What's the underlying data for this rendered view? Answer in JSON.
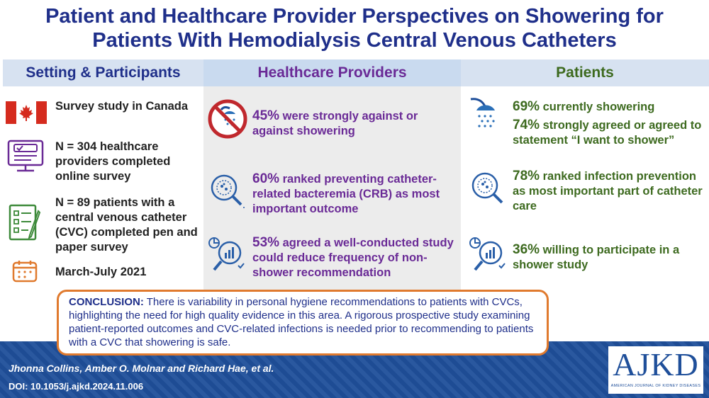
{
  "title": {
    "line1": "Patient and Healthcare Provider Perspectives on Showering for",
    "line2": "Patients With Hemodialysis Central Venous Catheters"
  },
  "columns": {
    "setting": "Setting & Participants",
    "providers": "Healthcare Providers",
    "patients": "Patients"
  },
  "setting": [
    {
      "icon": "canada-flag-icon",
      "text": "Survey study in Canada"
    },
    {
      "icon": "online-survey-icon",
      "text": "N = 304 healthcare providers completed online survey"
    },
    {
      "icon": "paper-survey-icon",
      "text": "N = 89 patients with a central venous catheter (CVC) completed pen and paper survey"
    },
    {
      "icon": "calendar-icon",
      "text": "March-July 2021"
    }
  ],
  "providers": [
    {
      "icon": "no-shower-icon",
      "pct": "45%",
      "text": " were strongly against or against showering"
    },
    {
      "icon": "bacteria-magnifier-icon",
      "pct": "60%",
      "text": " ranked preventing catheter-related bacteremia (CRB) as most important outcome"
    },
    {
      "icon": "data-analysis-icon",
      "pct": "53%",
      "text": " agreed a well-conducted study could reduce frequency of non-shower recommendation"
    }
  ],
  "patients": [
    {
      "icon": "shower-icon",
      "pct": "69%",
      "text": " currently showering"
    },
    {
      "icon": "",
      "pct": "74%",
      "text": " strongly agreed or agreed to statement “I want to shower”"
    },
    {
      "icon": "bacteria-magnifier-icon",
      "pct": "78%",
      "text": " ranked infection prevention as most important part of catheter care"
    },
    {
      "icon": "data-analysis-icon",
      "pct": "36%",
      "text": " willing to participate in a shower study"
    }
  ],
  "conclusion": {
    "label": "CONCLUSION:",
    "text": " There is variability in personal hygiene recommendations to patients with CVCs, highlighting the need for high quality evidence in this area. A rigorous prospective study examining patient-reported outcomes and CVC-related infections is needed prior to recommending to patients with a CVC that showering is safe."
  },
  "footer": {
    "authors": "Jhonna Collins, Amber O. Molnar and Richard Hae, et al.",
    "doi": "DOI: 10.1053/j.ajkd.2024.11.006",
    "logo": "AJKD",
    "logo_sub": "AMERICAN JOURNAL OF KIDNEY DISEASES"
  },
  "colors": {
    "title": "#1f2f8a",
    "providers": "#6a2a96",
    "patients": "#3d6a1f",
    "accent": "#e07a2e",
    "footer": "#1f4f9a"
  }
}
